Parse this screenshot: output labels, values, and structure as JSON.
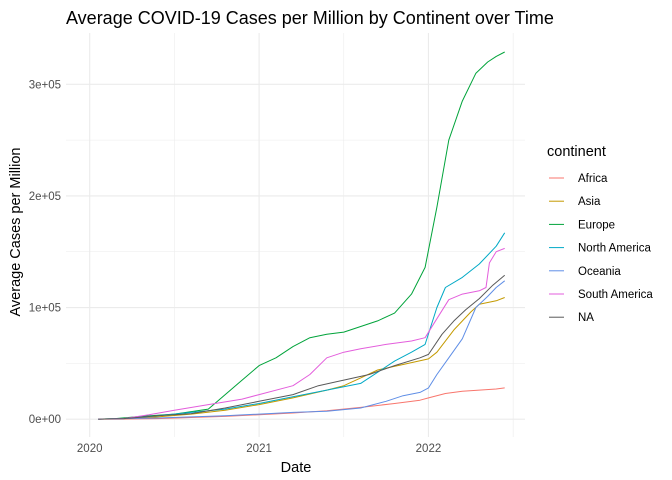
{
  "chart_data": {
    "type": "line",
    "title": "Average COVID-19 Cases per Million by Continent over Time",
    "xlabel": "Date",
    "ylabel": "Average Cases per Million",
    "x_ticks": [
      {
        "value": 2020.0,
        "label": "2020"
      },
      {
        "value": 2021.0,
        "label": "2021"
      },
      {
        "value": 2022.0,
        "label": "2022"
      }
    ],
    "y_ticks": [
      {
        "value": 0,
        "label": "0e+00"
      },
      {
        "value": 100000,
        "label": "1e+05"
      },
      {
        "value": 200000,
        "label": "2e+05"
      },
      {
        "value": 300000,
        "label": "3e+05"
      }
    ],
    "xlim": [
      2019.86,
      2022.57
    ],
    "ylim": [
      -16000,
      346000
    ],
    "grid": true,
    "legend": {
      "title": "continent",
      "position": "right"
    },
    "series": [
      {
        "name": "Africa",
        "color": "#F8766D",
        "points": [
          [
            2020.05,
            0
          ],
          [
            2020.2,
            0
          ],
          [
            2020.4,
            500
          ],
          [
            2020.6,
            1500
          ],
          [
            2020.8,
            2500
          ],
          [
            2021.0,
            4000
          ],
          [
            2021.2,
            5500
          ],
          [
            2021.4,
            7500
          ],
          [
            2021.6,
            10500
          ],
          [
            2021.8,
            14000
          ],
          [
            2021.95,
            17000
          ],
          [
            2022.0,
            19000
          ],
          [
            2022.1,
            23000
          ],
          [
            2022.2,
            25000
          ],
          [
            2022.3,
            26000
          ],
          [
            2022.4,
            27000
          ],
          [
            2022.45,
            28000
          ]
        ]
      },
      {
        "name": "Asia",
        "color": "#C49A00",
        "points": [
          [
            2020.05,
            0
          ],
          [
            2020.2,
            500
          ],
          [
            2020.4,
            2000
          ],
          [
            2020.6,
            4500
          ],
          [
            2020.8,
            8000
          ],
          [
            2021.0,
            13000
          ],
          [
            2021.2,
            19000
          ],
          [
            2021.4,
            26000
          ],
          [
            2021.5,
            30000
          ],
          [
            2021.6,
            37000
          ],
          [
            2021.7,
            44000
          ],
          [
            2021.85,
            49000
          ],
          [
            2022.0,
            54000
          ],
          [
            2022.05,
            60000
          ],
          [
            2022.15,
            80000
          ],
          [
            2022.25,
            96000
          ],
          [
            2022.3,
            103000
          ],
          [
            2022.4,
            106000
          ],
          [
            2022.45,
            109000
          ]
        ]
      },
      {
        "name": "Europe",
        "color": "#00A33A",
        "points": [
          [
            2020.05,
            0
          ],
          [
            2020.15,
            500
          ],
          [
            2020.3,
            2500
          ],
          [
            2020.5,
            4500
          ],
          [
            2020.7,
            9000
          ],
          [
            2020.8,
            22000
          ],
          [
            2020.9,
            35000
          ],
          [
            2021.0,
            48000
          ],
          [
            2021.1,
            55000
          ],
          [
            2021.2,
            65000
          ],
          [
            2021.3,
            73000
          ],
          [
            2021.4,
            76000
          ],
          [
            2021.5,
            78000
          ],
          [
            2021.6,
            83000
          ],
          [
            2021.7,
            88000
          ],
          [
            2021.8,
            95000
          ],
          [
            2021.9,
            112000
          ],
          [
            2021.98,
            136000
          ],
          [
            2022.05,
            190000
          ],
          [
            2022.12,
            250000
          ],
          [
            2022.2,
            285000
          ],
          [
            2022.28,
            310000
          ],
          [
            2022.35,
            320000
          ],
          [
            2022.4,
            325000
          ],
          [
            2022.45,
            329000
          ]
        ]
      },
      {
        "name": "North America",
        "color": "#00A9C6",
        "points": [
          [
            2020.05,
            0
          ],
          [
            2020.2,
            500
          ],
          [
            2020.4,
            3000
          ],
          [
            2020.6,
            6000
          ],
          [
            2020.8,
            9000
          ],
          [
            2021.0,
            14000
          ],
          [
            2021.2,
            20000
          ],
          [
            2021.4,
            26000
          ],
          [
            2021.6,
            32000
          ],
          [
            2021.7,
            42000
          ],
          [
            2021.8,
            52000
          ],
          [
            2021.9,
            60000
          ],
          [
            2021.98,
            67000
          ],
          [
            2022.05,
            100000
          ],
          [
            2022.1,
            118000
          ],
          [
            2022.2,
            127000
          ],
          [
            2022.3,
            139000
          ],
          [
            2022.4,
            155000
          ],
          [
            2022.45,
            167000
          ]
        ]
      },
      {
        "name": "Oceania",
        "color": "#5F8EE6",
        "points": [
          [
            2020.05,
            0
          ],
          [
            2020.2,
            500
          ],
          [
            2020.4,
            1000
          ],
          [
            2020.6,
            2000
          ],
          [
            2020.8,
            3000
          ],
          [
            2021.0,
            4500
          ],
          [
            2021.2,
            6000
          ],
          [
            2021.4,
            7000
          ],
          [
            2021.6,
            10000
          ],
          [
            2021.75,
            16000
          ],
          [
            2021.85,
            21000
          ],
          [
            2021.95,
            24000
          ],
          [
            2022.0,
            28000
          ],
          [
            2022.05,
            40000
          ],
          [
            2022.12,
            55000
          ],
          [
            2022.2,
            72000
          ],
          [
            2022.28,
            100000
          ],
          [
            2022.35,
            110000
          ],
          [
            2022.4,
            118000
          ],
          [
            2022.45,
            124000
          ]
        ]
      },
      {
        "name": "South America",
        "color": "#E35EDC",
        "points": [
          [
            2020.05,
            0
          ],
          [
            2020.2,
            500
          ],
          [
            2020.35,
            4000
          ],
          [
            2020.5,
            8000
          ],
          [
            2020.7,
            13000
          ],
          [
            2020.9,
            18000
          ],
          [
            2021.0,
            22000
          ],
          [
            2021.2,
            30000
          ],
          [
            2021.3,
            40000
          ],
          [
            2021.4,
            55000
          ],
          [
            2021.5,
            60000
          ],
          [
            2021.6,
            63000
          ],
          [
            2021.75,
            67000
          ],
          [
            2021.9,
            70000
          ],
          [
            2021.98,
            73000
          ],
          [
            2022.05,
            90000
          ],
          [
            2022.12,
            107000
          ],
          [
            2022.2,
            112000
          ],
          [
            2022.3,
            115000
          ],
          [
            2022.34,
            118000
          ],
          [
            2022.36,
            140000
          ],
          [
            2022.4,
            150000
          ],
          [
            2022.45,
            153000
          ]
        ]
      },
      {
        "name": "NA",
        "color": "#595959",
        "points": [
          [
            2020.05,
            0
          ],
          [
            2020.2,
            500
          ],
          [
            2020.4,
            3000
          ],
          [
            2020.6,
            5000
          ],
          [
            2020.8,
            10000
          ],
          [
            2021.0,
            16000
          ],
          [
            2021.2,
            22000
          ],
          [
            2021.35,
            30000
          ],
          [
            2021.5,
            35000
          ],
          [
            2021.65,
            40000
          ],
          [
            2021.8,
            48000
          ],
          [
            2021.95,
            55000
          ],
          [
            2022.0,
            58000
          ],
          [
            2022.08,
            76000
          ],
          [
            2022.15,
            88000
          ],
          [
            2022.22,
            98000
          ],
          [
            2022.3,
            108000
          ],
          [
            2022.38,
            120000
          ],
          [
            2022.45,
            129000
          ]
        ]
      }
    ]
  }
}
